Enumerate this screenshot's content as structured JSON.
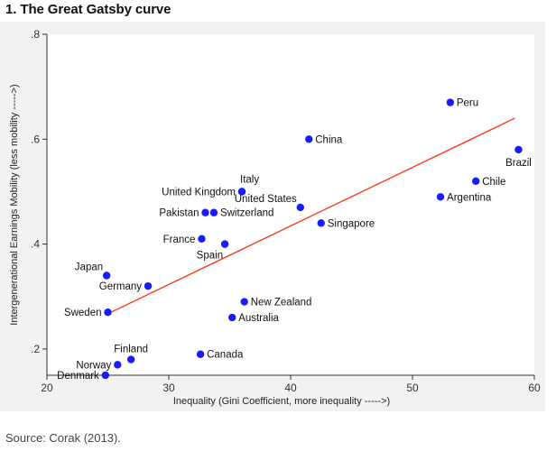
{
  "figure": {
    "title": "1. The Great Gatsby curve",
    "source": "Source: Corak (2013)."
  },
  "chart_data": {
    "type": "scatter",
    "title": "1. The Great Gatsby curve",
    "xlabel": "Inequality (Gini Coefficient, more inequality ----->)",
    "ylabel": "Intergenerational Earnings Mobility (less mobility ----->)",
    "xlim": [
      20,
      60
    ],
    "ylim": [
      0.15,
      0.8
    ],
    "xticks": [
      20,
      30,
      40,
      50,
      60
    ],
    "xtick_labels": [
      "20",
      "30",
      "40",
      "50",
      "60"
    ],
    "yticks": [
      0.2,
      0.4,
      0.6,
      0.8
    ],
    "ytick_labels": [
      ".2",
      ".4",
      ".6",
      ".8"
    ],
    "grid": false,
    "point_color": "#1a1aff",
    "fit_color": "#ff3b1f",
    "points": [
      {
        "label": "Denmark",
        "x": 24.8,
        "y": 0.15,
        "pos": "left"
      },
      {
        "label": "Norway",
        "x": 25.8,
        "y": 0.17,
        "pos": "left"
      },
      {
        "label": "Finland",
        "x": 26.9,
        "y": 0.18,
        "pos": "top"
      },
      {
        "label": "Sweden",
        "x": 25.0,
        "y": 0.27,
        "pos": "left"
      },
      {
        "label": "Japan",
        "x": 24.9,
        "y": 0.34,
        "pos": "topleft"
      },
      {
        "label": "Germany",
        "x": 28.3,
        "y": 0.32,
        "pos": "left"
      },
      {
        "label": "Canada",
        "x": 32.6,
        "y": 0.19,
        "pos": "right"
      },
      {
        "label": "Australia",
        "x": 35.2,
        "y": 0.26,
        "pos": "right"
      },
      {
        "label": "New Zealand",
        "x": 36.2,
        "y": 0.29,
        "pos": "right"
      },
      {
        "label": "France",
        "x": 32.7,
        "y": 0.41,
        "pos": "left"
      },
      {
        "label": "Spain",
        "x": 34.6,
        "y": 0.4,
        "pos": "bottomleft"
      },
      {
        "label": "Pakistan",
        "x": 33.0,
        "y": 0.46,
        "pos": "left"
      },
      {
        "label": "Switzerland",
        "x": 33.7,
        "y": 0.46,
        "pos": "right"
      },
      {
        "label": "United Kingdom",
        "x": 36.0,
        "y": 0.5,
        "pos": "left"
      },
      {
        "label": "Italy",
        "x": 36.0,
        "y": 0.5,
        "pos": "topright"
      },
      {
        "label": "United States",
        "x": 40.8,
        "y": 0.47,
        "pos": "topleft"
      },
      {
        "label": "Singapore",
        "x": 42.5,
        "y": 0.44,
        "pos": "right"
      },
      {
        "label": "China",
        "x": 41.5,
        "y": 0.6,
        "pos": "right"
      },
      {
        "label": "Argentina",
        "x": 52.3,
        "y": 0.49,
        "pos": "right"
      },
      {
        "label": "Chile",
        "x": 55.2,
        "y": 0.52,
        "pos": "right"
      },
      {
        "label": "Brazil",
        "x": 58.7,
        "y": 0.58,
        "pos": "bottom"
      },
      {
        "label": "Peru",
        "x": 53.1,
        "y": 0.67,
        "pos": "right"
      }
    ],
    "fit_line": {
      "x": [
        24.8,
        58.4
      ],
      "y": [
        0.265,
        0.64
      ]
    }
  }
}
